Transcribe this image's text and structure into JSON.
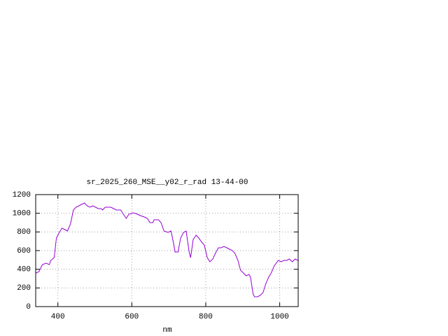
{
  "chart_data": {
    "type": "line",
    "title": "sr_2025_260_MSE__y02_r_rad 13-44-00",
    "x_label": "nm",
    "x": [
      341,
      349,
      358,
      368,
      377,
      381,
      390,
      396,
      404,
      411,
      419,
      426,
      434,
      442,
      449,
      457,
      464,
      472,
      479,
      487,
      494,
      502,
      509,
      517,
      521,
      528,
      536,
      543,
      551,
      558,
      570,
      577,
      585,
      592,
      604,
      615,
      623,
      634,
      642,
      649,
      657,
      660,
      672,
      679,
      687,
      698,
      706,
      713,
      717,
      725,
      732,
      740,
      747,
      755,
      759,
      766,
      774,
      781,
      789,
      796,
      804,
      811,
      819,
      826,
      834,
      842,
      849,
      857,
      864,
      872,
      879,
      887,
      894,
      902,
      909,
      917,
      921,
      928,
      932,
      940,
      947,
      955,
      962,
      970,
      977,
      985,
      996,
      1004,
      1011,
      1019,
      1026,
      1034,
      1042,
      1049
    ],
    "series": [
      {
        "color": "#9400d3",
        "values": [
          360,
          375,
          450,
          465,
          450,
          495,
          525,
          735,
          795,
          840,
          825,
          810,
          885,
          1035,
          1065,
          1080,
          1095,
          1110,
          1080,
          1065,
          1080,
          1065,
          1050,
          1050,
          1035,
          1065,
          1065,
          1065,
          1050,
          1035,
          1035,
          990,
          945,
          990,
          1005,
          990,
          975,
          960,
          945,
          900,
          900,
          930,
          930,
          900,
          810,
          795,
          810,
          675,
          585,
          585,
          735,
          795,
          810,
          585,
          525,
          720,
          765,
          735,
          690,
          660,
          525,
          480,
          510,
          570,
          630,
          630,
          645,
          630,
          615,
          600,
          570,
          495,
          390,
          360,
          330,
          345,
          315,
          135,
          105,
          105,
          120,
          150,
          240,
          315,
          360,
          435,
          495,
          480,
          495,
          495,
          510,
          480,
          510,
          495
        ]
      }
    ],
    "xlim": [
      340,
      1050
    ],
    "ylim": [
      0,
      1200
    ],
    "xticks": [
      400,
      600,
      800,
      1000
    ],
    "yticks": [
      0,
      200,
      400,
      600,
      800,
      1000,
      1200
    ],
    "grid": true
  }
}
